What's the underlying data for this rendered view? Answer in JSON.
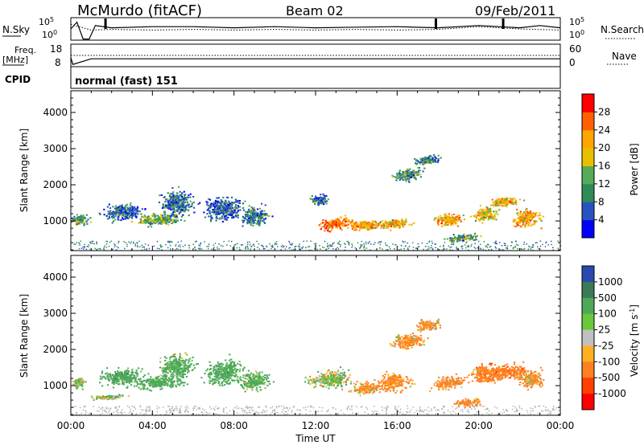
{
  "header": {
    "station": "McMurdo (fitACF)",
    "beam": "Beam 02",
    "date": "09/Feb/2011",
    "cpid_label": "CPID",
    "cpid_value": "normal (fast) 151"
  },
  "chart_data": [
    {
      "type": "line",
      "panel": "noise",
      "left_label": "N.Sky",
      "right_label": "N.Search",
      "left_ticks": [
        "10^5",
        "10^0"
      ],
      "right_ticks": [
        "10^5",
        "10^0"
      ],
      "right_style": "dotted",
      "series": [
        {
          "name": "N.Sky",
          "style": "solid",
          "x": [
            0,
            0.3,
            0.6,
            0.9,
            1.2,
            2,
            4,
            6,
            8,
            10,
            12,
            14,
            16,
            18,
            20,
            21,
            22,
            23,
            24
          ],
          "y_fraction": [
            0.5,
            0.2,
            0.95,
            0.95,
            0.35,
            0.45,
            0.4,
            0.4,
            0.45,
            0.4,
            0.45,
            0.42,
            0.4,
            0.45,
            0.35,
            0.4,
            0.45,
            0.35,
            0.45
          ]
        },
        {
          "name": "N.Search",
          "style": "dotted",
          "x": [
            0,
            1,
            2,
            4,
            6,
            8,
            10,
            12,
            14,
            16,
            18,
            20,
            22,
            24
          ],
          "y_fraction": [
            0.3,
            0.55,
            0.52,
            0.55,
            0.52,
            0.55,
            0.52,
            0.55,
            0.52,
            0.55,
            0.52,
            0.4,
            0.5,
            0.55
          ]
        }
      ]
    },
    {
      "type": "line",
      "panel": "frequency",
      "left_label": "Freq.",
      "left_unit": "[MHz]",
      "right_label": "Nave",
      "right_style": "dotted",
      "left_ticks": [
        "18",
        "8"
      ],
      "right_ticks": [
        "60",
        "0"
      ],
      "series": [
        {
          "name": "Freq.",
          "style": "solid",
          "x": [
            0,
            0.1,
            1,
            24
          ],
          "y": [
            12,
            9,
            11.5,
            11.5
          ]
        },
        {
          "name": "Nave",
          "style": "dotted",
          "x": [
            0,
            24
          ],
          "y": [
            30,
            30
          ]
        }
      ]
    },
    {
      "type": "heatmap",
      "panel": "power",
      "xlabel": "",
      "ylabel": "Slant Range [km]",
      "xlim": [
        0,
        24
      ],
      "ylim": [
        180,
        4600
      ],
      "yticks": [
        1000,
        2000,
        3000,
        4000
      ],
      "colorbar_label": "Power [dB]",
      "colorbar_ticks": [
        "4",
        "8",
        "12",
        "16",
        "20",
        "24",
        "28"
      ],
      "colorbar_colors": [
        "#0000ff",
        "#2a52be",
        "#2e8b57",
        "#55aa55",
        "#e8c000",
        "#ffa500",
        "#ff6000",
        "#ff0000"
      ],
      "blobs": [
        {
          "t": 2.5,
          "r": 1250,
          "dt": 1.0,
          "dr": 220,
          "v": 7
        },
        {
          "t": 4.3,
          "r": 1050,
          "dt": 1.2,
          "dr": 160,
          "v": 14
        },
        {
          "t": 5.2,
          "r": 1500,
          "dt": 0.8,
          "dr": 350,
          "v": 8
        },
        {
          "t": 7.5,
          "r": 1350,
          "dt": 0.9,
          "dr": 350,
          "v": 7
        },
        {
          "t": 9.0,
          "r": 1150,
          "dt": 0.7,
          "dr": 250,
          "v": 9
        },
        {
          "t": 12.2,
          "r": 1600,
          "dt": 0.5,
          "dr": 150,
          "v": 8
        },
        {
          "t": 13.0,
          "r": 950,
          "dt": 0.8,
          "dr": 180,
          "v": 24
        },
        {
          "t": 14.4,
          "r": 900,
          "dt": 0.8,
          "dr": 130,
          "v": 22
        },
        {
          "t": 15.8,
          "r": 950,
          "dt": 0.8,
          "dr": 150,
          "v": 20
        },
        {
          "t": 16.5,
          "r": 2300,
          "dt": 0.7,
          "dr": 180,
          "v": 11
        },
        {
          "t": 17.5,
          "r": 2700,
          "dt": 0.6,
          "dr": 120,
          "v": 10
        },
        {
          "t": 18.5,
          "r": 1050,
          "dt": 0.7,
          "dr": 180,
          "v": 22
        },
        {
          "t": 19.2,
          "r": 560,
          "dt": 0.8,
          "dr": 100,
          "v": 12
        },
        {
          "t": 20.3,
          "r": 1200,
          "dt": 0.6,
          "dr": 200,
          "v": 18
        },
        {
          "t": 21.2,
          "r": 1550,
          "dt": 0.8,
          "dr": 120,
          "v": 20
        },
        {
          "t": 22.3,
          "r": 1100,
          "dt": 0.7,
          "dr": 230,
          "v": 21
        },
        {
          "t": 0.4,
          "r": 1050,
          "dt": 0.4,
          "dr": 150,
          "v": 12
        }
      ]
    },
    {
      "type": "heatmap",
      "panel": "velocity",
      "xlabel": "Time UT",
      "ylabel": "Slant Range [km]",
      "xlim": [
        0,
        24
      ],
      "ylim": [
        180,
        4600
      ],
      "xticks": [
        "00:00",
        "04:00",
        "08:00",
        "12:00",
        "16:00",
        "20:00",
        "00:00"
      ],
      "yticks": [
        1000,
        2000,
        3000,
        4000
      ],
      "colorbar_label": "Velocity [m s^-1]",
      "colorbar_ticks": [
        "1000",
        "500",
        "100",
        "25",
        "-25",
        "-100",
        "-500",
        "-1000"
      ],
      "colorbar_colors": [
        "#2a4ab0",
        "#3a7a58",
        "#4da85a",
        "#69c83a",
        "#c0c0c0",
        "#ffb020",
        "#ff8020",
        "#ff4000",
        "#ff0000"
      ],
      "blobs": [
        {
          "t": 2.5,
          "r": 1250,
          "dt": 1.0,
          "dr": 240,
          "v": 300
        },
        {
          "t": 4.3,
          "r": 1100,
          "dt": 1.2,
          "dr": 180,
          "v": 250
        },
        {
          "t": 5.2,
          "r": 1550,
          "dt": 0.8,
          "dr": 350,
          "v": 200
        },
        {
          "t": 7.5,
          "r": 1400,
          "dt": 0.9,
          "dr": 350,
          "v": 250
        },
        {
          "t": 9.0,
          "r": 1150,
          "dt": 0.7,
          "dr": 250,
          "v": 180
        },
        {
          "t": 12.7,
          "r": 1200,
          "dt": 1.0,
          "dr": 260,
          "v": 60
        },
        {
          "t": 14.4,
          "r": 950,
          "dt": 0.8,
          "dr": 150,
          "v": -150
        },
        {
          "t": 15.8,
          "r": 1100,
          "dt": 0.8,
          "dr": 250,
          "v": -180
        },
        {
          "t": 16.5,
          "r": 2250,
          "dt": 0.8,
          "dr": 200,
          "v": -150
        },
        {
          "t": 17.5,
          "r": 2700,
          "dt": 0.6,
          "dr": 140,
          "v": -150
        },
        {
          "t": 18.5,
          "r": 1100,
          "dt": 0.8,
          "dr": 180,
          "v": -200
        },
        {
          "t": 20.3,
          "r": 1350,
          "dt": 0.8,
          "dr": 250,
          "v": -300
        },
        {
          "t": 21.5,
          "r": 1400,
          "dt": 0.9,
          "dr": 200,
          "v": -300
        },
        {
          "t": 22.5,
          "r": 1200,
          "dt": 0.6,
          "dr": 230,
          "v": -150
        },
        {
          "t": 1.8,
          "r": 700,
          "dt": 0.8,
          "dr": 60,
          "v": 80
        },
        {
          "t": 0.4,
          "r": 1100,
          "dt": 0.3,
          "dr": 150,
          "v": 60
        },
        {
          "t": 19.5,
          "r": 550,
          "dt": 0.7,
          "dr": 100,
          "v": -150
        }
      ]
    }
  ]
}
